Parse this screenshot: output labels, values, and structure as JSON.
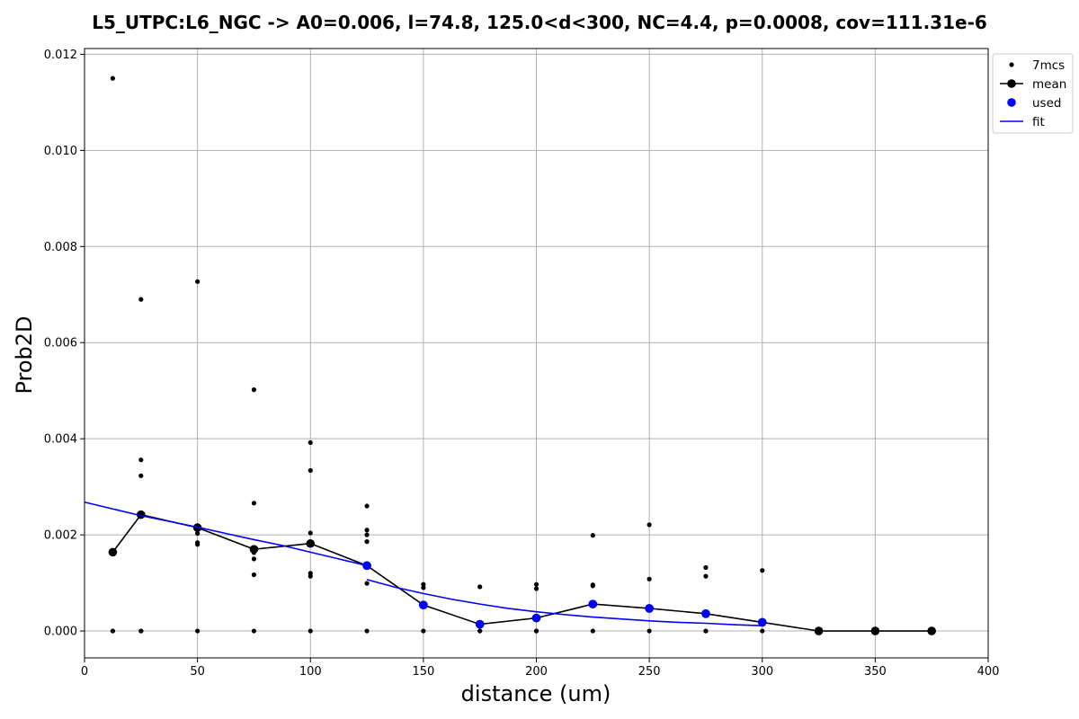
{
  "chart_data": {
    "type": "scatter",
    "title": "L5_UTPC:L6_NGC -> A0=0.006, l=74.8, 125.0<d<300, NC=4.4, p=0.0008, cov=111.31e-6",
    "xlabel": "distance (um)",
    "ylabel": "Prob2D",
    "xlim": [
      0,
      400
    ],
    "ylim": [
      -0.00056,
      0.01212
    ],
    "xticks": [
      0,
      50,
      100,
      150,
      200,
      250,
      300,
      350,
      400
    ],
    "xtick_labels": [
      "0",
      "50",
      "100",
      "150",
      "200",
      "250",
      "300",
      "350",
      "400"
    ],
    "yticks": [
      0,
      0.002,
      0.004,
      0.006,
      0.008,
      0.01,
      0.012
    ],
    "ytick_labels": [
      "0.000",
      "0.002",
      "0.004",
      "0.006",
      "0.008",
      "0.010",
      "0.012"
    ],
    "grid": true,
    "legend_position": "top-right",
    "series": [
      {
        "name": "7mcs",
        "kind": "points",
        "color": "#000000",
        "points": [
          [
            12.5,
            0.0115
          ],
          [
            12.5,
            0.0
          ],
          [
            12.5,
            0.0
          ],
          [
            25,
            0.0069
          ],
          [
            25,
            0.00356
          ],
          [
            25,
            0.00323
          ],
          [
            25,
            0.0
          ],
          [
            25,
            0.0
          ],
          [
            50,
            0.00727
          ],
          [
            50,
            0.00203
          ],
          [
            50,
            0.00184
          ],
          [
            50,
            0.0018
          ],
          [
            50,
            0.0
          ],
          [
            75,
            0.00502
          ],
          [
            75,
            0.00266
          ],
          [
            75,
            0.00172
          ],
          [
            75,
            0.00163
          ],
          [
            75,
            0.0015
          ],
          [
            75,
            0.00117
          ],
          [
            75,
            0.0
          ],
          [
            100,
            0.00392
          ],
          [
            100,
            0.00334
          ],
          [
            100,
            0.00204
          ],
          [
            100,
            0.0012
          ],
          [
            100,
            0.00114
          ],
          [
            100,
            0.0
          ],
          [
            125,
            0.0026
          ],
          [
            125,
            0.0021
          ],
          [
            125,
            0.002
          ],
          [
            125,
            0.00186
          ],
          [
            125,
            0.00099
          ],
          [
            125,
            0.0
          ],
          [
            150,
            0.00097
          ],
          [
            150,
            0.0009
          ],
          [
            150,
            0.0
          ],
          [
            175,
            0.00092
          ],
          [
            175,
            0.0
          ],
          [
            175,
            0.0
          ],
          [
            200,
            0.00097
          ],
          [
            200,
            0.00088
          ],
          [
            200,
            0.0
          ],
          [
            200,
            0.0
          ],
          [
            225,
            0.00199
          ],
          [
            225,
            0.00096
          ],
          [
            225,
            0.00094
          ],
          [
            225,
            0.0
          ],
          [
            250,
            0.00221
          ],
          [
            250,
            0.00108
          ],
          [
            250,
            0.0
          ],
          [
            275,
            0.00132
          ],
          [
            275,
            0.00114
          ],
          [
            275,
            0.0
          ],
          [
            275,
            0.0
          ],
          [
            300,
            0.00126
          ],
          [
            300,
            0.0
          ]
        ]
      },
      {
        "name": "mean",
        "kind": "line-markers",
        "color": "#000000",
        "x": [
          12.5,
          25,
          50,
          75,
          100,
          125,
          150,
          175,
          200,
          225,
          250,
          275,
          300,
          325,
          350,
          375
        ],
        "y": [
          0.00164,
          0.00242,
          0.00215,
          0.0017,
          0.00182,
          0.00136,
          0.00054,
          0.00014,
          0.00027,
          0.00056,
          0.00047,
          0.00036,
          0.00018,
          0.0,
          0.0,
          0.0
        ]
      },
      {
        "name": "used",
        "kind": "points",
        "color": "#0000ff",
        "x": [
          125,
          150,
          175,
          200,
          225,
          250,
          275,
          300
        ],
        "y": [
          0.00136,
          0.00054,
          0.00014,
          0.00027,
          0.00056,
          0.00047,
          0.00036,
          0.00018
        ]
      },
      {
        "name": "fit",
        "kind": "line",
        "color": "#0000ff",
        "x": [
          0,
          12.5,
          25,
          37.5,
          50,
          62.5,
          75,
          87.5,
          100,
          112.5,
          125
        ],
        "y": [
          0.00268,
          0.00254,
          0.0024,
          0.00228,
          0.00216,
          0.00203,
          0.0019,
          0.00178,
          0.00164,
          0.0015,
          0.00136
        ]
      },
      {
        "name": "fit",
        "kind": "line",
        "color": "#0000ff",
        "x": [
          125,
          137.5,
          150,
          162.5,
          175,
          187.5,
          200,
          212.5,
          225,
          237.5,
          250,
          262.5,
          275,
          287.5,
          300
        ],
        "y": [
          0.00107,
          0.00091,
          0.00078,
          0.00066,
          0.00056,
          0.00047,
          0.0004,
          0.00034,
          0.00029,
          0.00025,
          0.00021,
          0.00018,
          0.00016,
          0.00013,
          0.00011
        ]
      }
    ],
    "legend": [
      {
        "label": "7mcs",
        "symbol": "dot",
        "color": "#000000"
      },
      {
        "label": "mean",
        "symbol": "line-marker",
        "color": "#000000"
      },
      {
        "label": "used",
        "symbol": "marker",
        "color": "#0000ff"
      },
      {
        "label": "fit",
        "symbol": "line",
        "color": "#0000ff"
      }
    ]
  }
}
